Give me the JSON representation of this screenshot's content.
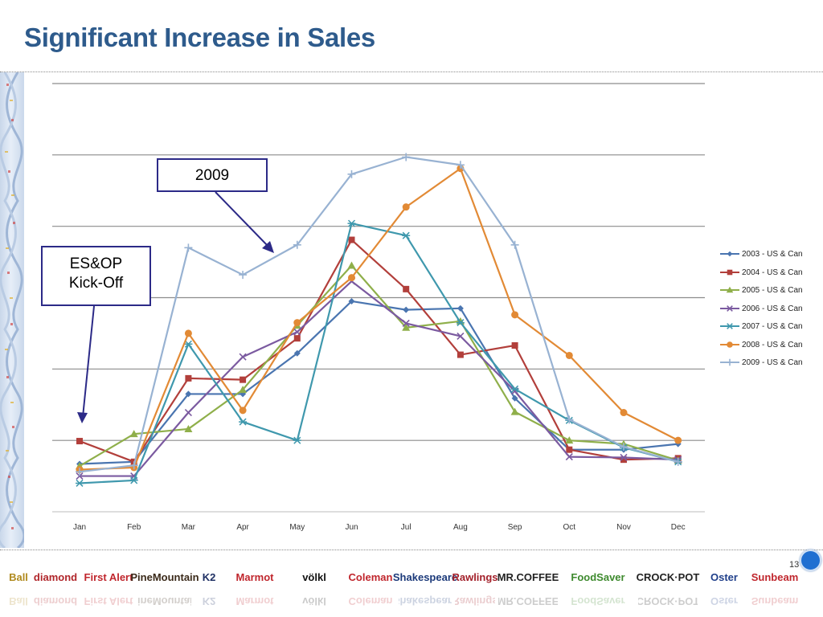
{
  "slide": {
    "title": "Significant Increase in Sales",
    "page_number": "13"
  },
  "callouts": {
    "label_2009": "2009",
    "label_esop": "ES&OP\nKick-Off"
  },
  "chart_data": {
    "type": "line",
    "title": "",
    "xlabel": "",
    "ylabel": "",
    "categories": [
      "Jan",
      "Feb",
      "Mar",
      "Apr",
      "May",
      "Jun",
      "Jul",
      "Aug",
      "Sep",
      "Oct",
      "Nov",
      "Dec"
    ],
    "ylim": [
      0,
      6
    ],
    "grid": true,
    "y_tick_labels_shown": false,
    "legend_position": "right",
    "series": [
      {
        "name": "2003 - US & Can",
        "color": "#4a75b0",
        "marker": "diamond",
        "values": [
          0.67,
          0.7,
          1.65,
          1.65,
          2.22,
          2.95,
          2.83,
          2.85,
          1.59,
          0.87,
          0.87,
          0.95
        ]
      },
      {
        "name": "2004 - US & Can",
        "color": "#b23f3b",
        "marker": "square",
        "values": [
          0.99,
          0.7,
          1.87,
          1.85,
          2.43,
          3.81,
          3.12,
          2.2,
          2.33,
          0.87,
          0.73,
          0.75
        ]
      },
      {
        "name": "2005 - US & Can",
        "color": "#8faf4a",
        "marker": "triangle",
        "values": [
          0.64,
          1.09,
          1.16,
          1.71,
          2.61,
          3.45,
          2.58,
          2.67,
          1.4,
          1.0,
          0.95,
          0.72
        ]
      },
      {
        "name": "2006 - US & Can",
        "color": "#7b5aa0",
        "marker": "x",
        "values": [
          0.5,
          0.5,
          1.39,
          2.17,
          2.52,
          3.23,
          2.64,
          2.46,
          1.69,
          0.77,
          0.76,
          0.73
        ]
      },
      {
        "name": "2007 - US & Can",
        "color": "#3f98ad",
        "marker": "star",
        "values": [
          0.4,
          0.44,
          2.35,
          1.26,
          1.0,
          4.04,
          3.87,
          2.65,
          1.72,
          1.28,
          0.9,
          0.7
        ]
      },
      {
        "name": "2008 - US & Can",
        "color": "#e28a35",
        "marker": "circle",
        "values": [
          0.59,
          0.62,
          2.5,
          1.42,
          2.65,
          3.28,
          4.27,
          4.81,
          2.76,
          2.19,
          1.39,
          1.0
        ]
      },
      {
        "name": "2009 - US & Can",
        "color": "#98b2d2",
        "marker": "plus",
        "values": [
          0.56,
          0.65,
          3.7,
          3.32,
          3.74,
          4.73,
          4.97,
          4.86,
          3.74,
          1.29,
          0.91,
          0.7
        ]
      }
    ]
  },
  "logos": [
    {
      "name": "Ball",
      "text": "Ball",
      "color": "#b08a1e"
    },
    {
      "name": "Diamond",
      "text": "diamond",
      "color": "#b0252a"
    },
    {
      "name": "First Alert",
      "text": "First Alert",
      "color": "#c0262d"
    },
    {
      "name": "Pine Mountain",
      "text": "PineMountain",
      "color": "#3b2a1a"
    },
    {
      "name": "K2 Sports",
      "text": "K2",
      "color": "#1e2f63"
    },
    {
      "name": "Marmot",
      "text": "Marmot",
      "color": "#c0262d"
    },
    {
      "name": "Volkl",
      "text": "völkl",
      "color": "#111111"
    },
    {
      "name": "Coleman",
      "text": "Coleman",
      "color": "#c0262d"
    },
    {
      "name": "Shakespeare",
      "text": "Shakespeare",
      "color": "#1c3a7a"
    },
    {
      "name": "Rawlings",
      "text": "Rawlings",
      "color": "#a3202a"
    },
    {
      "name": "Mr. Coffee",
      "text": "MR.COFFEE",
      "color": "#222222"
    },
    {
      "name": "FoodSaver",
      "text": "FoodSaver",
      "color": "#3e8a2e"
    },
    {
      "name": "Crock-Pot",
      "text": "CROCK·POT",
      "color": "#222222"
    },
    {
      "name": "Oster",
      "text": "Oster",
      "color": "#1f3f8a"
    },
    {
      "name": "Sunbeam",
      "text": "Sunbeam",
      "color": "#c0262d"
    }
  ]
}
